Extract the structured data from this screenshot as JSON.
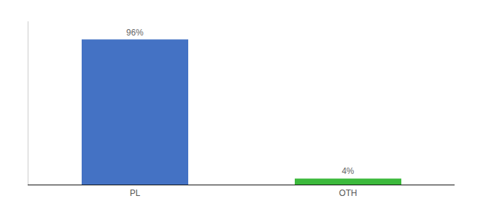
{
  "chart_data": {
    "type": "bar",
    "categories": [
      "PL",
      "OTH"
    ],
    "values": [
      96,
      4
    ],
    "value_labels": [
      "96%",
      "4%"
    ],
    "colors": [
      "#4472C4",
      "#3CB93C"
    ],
    "data_labels": true,
    "ylim": [
      0,
      108
    ],
    "tick_labels": "x",
    "grid": false
  }
}
